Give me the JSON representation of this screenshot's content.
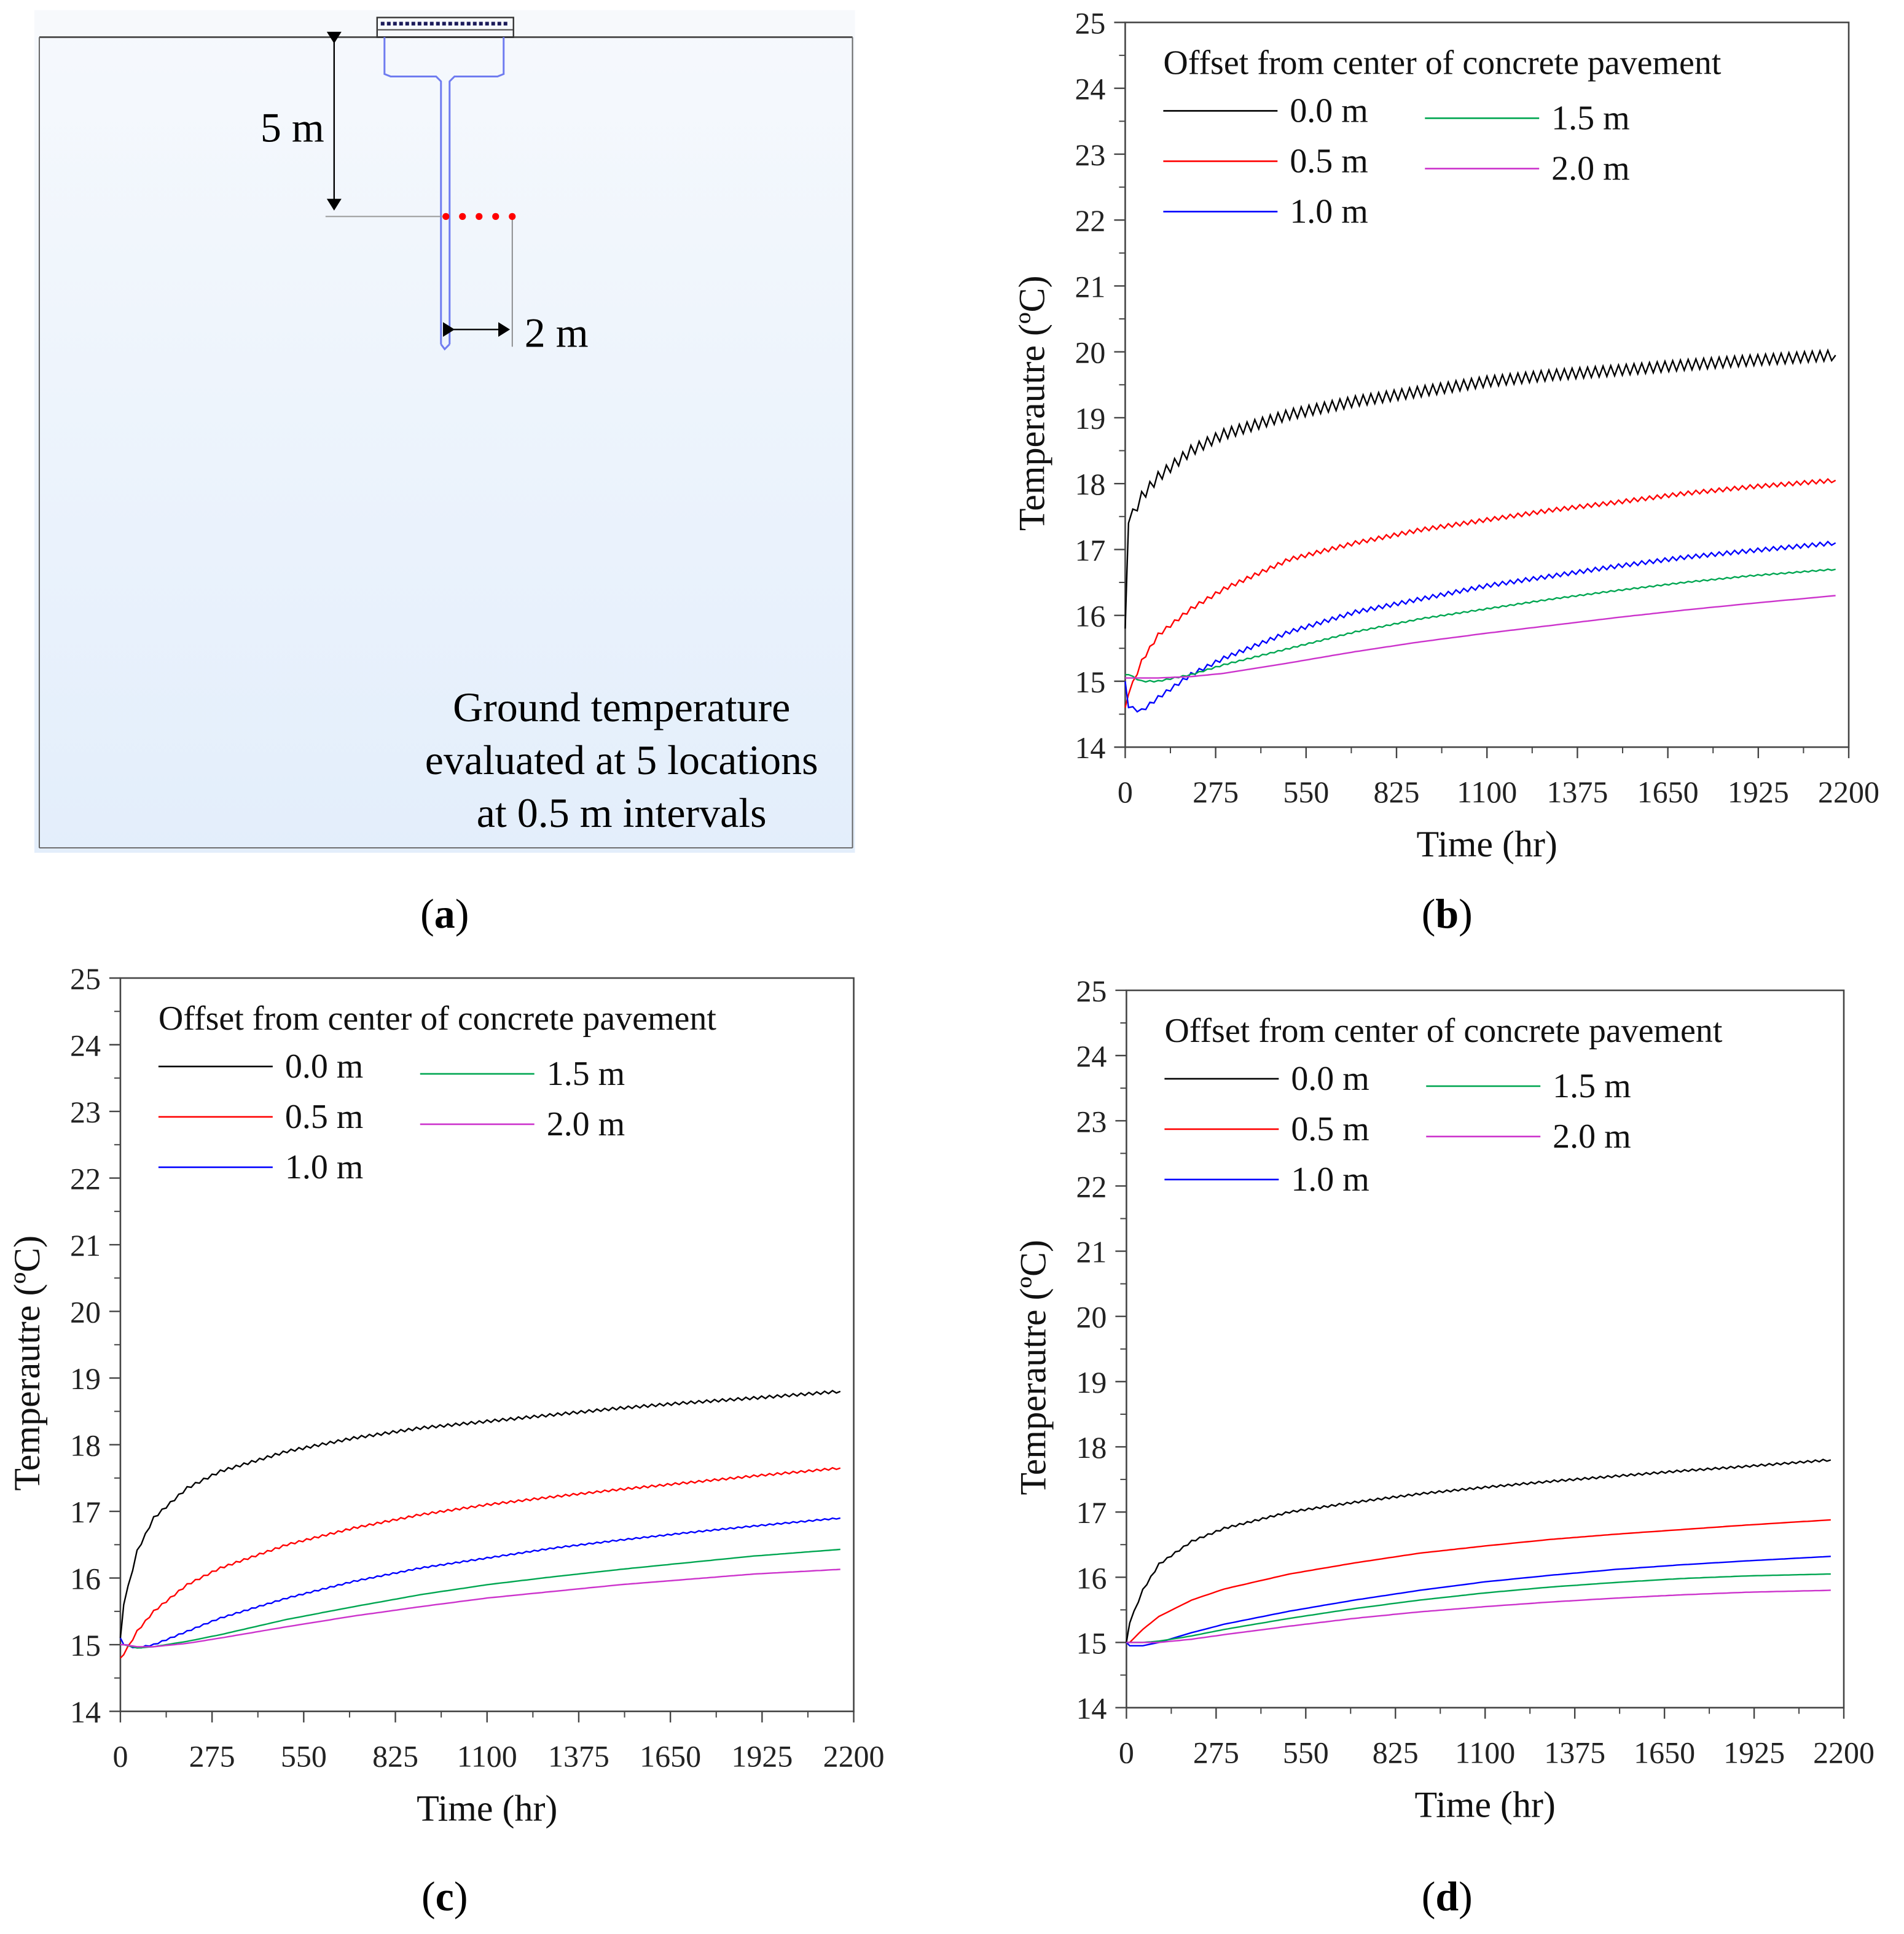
{
  "panel_a": {
    "label_open": "(",
    "label_letter": "a",
    "label_close": ")",
    "depth_label": "5 m",
    "offset_label": "2 m",
    "caption_lines": [
      "Ground temperature",
      "evaluated at 5 locations",
      "at 0.5 m intervals"
    ],
    "point_color": "#ff0000",
    "pipe_color": "#6f7cf0"
  },
  "chart_data": [
    {
      "panel": "b",
      "type": "line",
      "xlabel": "Time (hr)",
      "ylabel": "Temperautre (ºC)",
      "xlim": [
        0,
        2200
      ],
      "ylim": [
        14,
        25
      ],
      "xticks": [
        "0",
        "275",
        "550",
        "825",
        "1100",
        "1375",
        "1650",
        "1925",
        "2200"
      ],
      "yticks": [
        "14",
        "15",
        "16",
        "17",
        "18",
        "19",
        "20",
        "21",
        "22",
        "23",
        "24",
        "25"
      ],
      "legend_title": "Offset from center of concrete pavement",
      "legend_placement": "top-left",
      "x": [
        0,
        10,
        50,
        100,
        200,
        300,
        500,
        700,
        900,
        1100,
        1300,
        1500,
        1700,
        1900,
        2160
      ],
      "series": [
        {
          "name": "0.0 m",
          "color": "#000000",
          "oscillation": 0.08,
          "values": [
            15.8,
            17.4,
            17.8,
            18.1,
            18.5,
            18.75,
            19.05,
            19.25,
            19.4,
            19.55,
            19.65,
            19.72,
            19.8,
            19.87,
            19.95
          ]
        },
        {
          "name": "0.5 m",
          "color": "#ff0000",
          "oscillation": 0.03,
          "values": [
            14.6,
            14.8,
            15.3,
            15.7,
            16.1,
            16.4,
            16.85,
            17.1,
            17.3,
            17.45,
            17.6,
            17.72,
            17.85,
            17.95,
            18.05
          ]
        },
        {
          "name": "1.0 m",
          "color": "#0000ff",
          "oscillation": 0.03,
          "values": [
            15.0,
            14.6,
            14.55,
            14.75,
            15.1,
            15.35,
            15.75,
            16.05,
            16.25,
            16.45,
            16.6,
            16.75,
            16.88,
            16.98,
            17.1
          ]
        },
        {
          "name": "1.5 m",
          "color": "#00a651",
          "oscillation": 0.01,
          "values": [
            15.1,
            15.1,
            15.0,
            15.0,
            15.1,
            15.25,
            15.5,
            15.75,
            15.95,
            16.1,
            16.25,
            16.38,
            16.5,
            16.6,
            16.7
          ]
        },
        {
          "name": "2.0 m",
          "color": "#cc33cc",
          "oscillation": 0.0,
          "values": [
            15.05,
            15.05,
            15.05,
            15.05,
            15.07,
            15.12,
            15.28,
            15.45,
            15.6,
            15.73,
            15.85,
            15.97,
            16.08,
            16.18,
            16.3
          ]
        }
      ]
    },
    {
      "panel": "c",
      "type": "line",
      "xlabel": "Time (hr)",
      "ylabel": "Temperautre (ºC)",
      "xlim": [
        0,
        2200
      ],
      "ylim": [
        14,
        25
      ],
      "xticks": [
        "0",
        "275",
        "550",
        "825",
        "1100",
        "1375",
        "1650",
        "1925",
        "2200"
      ],
      "yticks": [
        "14",
        "15",
        "16",
        "17",
        "18",
        "19",
        "20",
        "21",
        "22",
        "23",
        "24",
        "25"
      ],
      "legend_title": "Offset from center of concrete pavement",
      "legend_placement": "top-left",
      "x": [
        0,
        10,
        50,
        100,
        200,
        300,
        500,
        700,
        900,
        1100,
        1300,
        1500,
        1700,
        1900,
        2160
      ],
      "series": [
        {
          "name": "0.0 m",
          "color": "#000000",
          "oscillation": 0.02,
          "values": [
            15.1,
            15.6,
            16.4,
            16.9,
            17.35,
            17.6,
            17.9,
            18.1,
            18.25,
            18.35,
            18.45,
            18.55,
            18.63,
            18.7,
            18.8
          ]
        },
        {
          "name": "0.5 m",
          "color": "#ff0000",
          "oscillation": 0.015,
          "values": [
            14.8,
            14.85,
            15.2,
            15.5,
            15.9,
            16.15,
            16.5,
            16.75,
            16.95,
            17.1,
            17.22,
            17.33,
            17.43,
            17.53,
            17.65
          ]
        },
        {
          "name": "1.0 m",
          "color": "#0000ff",
          "oscillation": 0.01,
          "values": [
            15.1,
            15.0,
            14.95,
            15.0,
            15.2,
            15.4,
            15.7,
            15.95,
            16.15,
            16.3,
            16.45,
            16.57,
            16.68,
            16.78,
            16.9
          ]
        },
        {
          "name": "1.5 m",
          "color": "#00a651",
          "oscillation": 0.0,
          "values": [
            15.0,
            15.0,
            14.95,
            14.97,
            15.05,
            15.15,
            15.38,
            15.57,
            15.75,
            15.9,
            16.02,
            16.13,
            16.23,
            16.33,
            16.43
          ]
        },
        {
          "name": "2.0 m",
          "color": "#cc33cc",
          "oscillation": 0.0,
          "values": [
            15.0,
            15.0,
            14.97,
            14.97,
            15.02,
            15.1,
            15.27,
            15.43,
            15.57,
            15.7,
            15.8,
            15.9,
            15.98,
            16.06,
            16.13
          ]
        }
      ]
    },
    {
      "panel": "d",
      "type": "line",
      "xlabel": "Time (hr)",
      "ylabel": "Temperautre (ºC)",
      "xlim": [
        0,
        2200
      ],
      "ylim": [
        14,
        25
      ],
      "xticks": [
        "0",
        "275",
        "550",
        "825",
        "1100",
        "1375",
        "1650",
        "1925",
        "2200"
      ],
      "yticks": [
        "14",
        "15",
        "16",
        "17",
        "18",
        "19",
        "20",
        "21",
        "22",
        "23",
        "24",
        "25"
      ],
      "legend_title": "Offset from center of concrete pavement",
      "legend_placement": "top-left",
      "x": [
        0,
        10,
        50,
        100,
        200,
        300,
        500,
        700,
        900,
        1100,
        1300,
        1500,
        1700,
        1900,
        2160
      ],
      "series": [
        {
          "name": "0.0 m",
          "color": "#000000",
          "oscillation": 0.015,
          "values": [
            15.0,
            15.3,
            15.8,
            16.2,
            16.55,
            16.75,
            17.0,
            17.15,
            17.28,
            17.38,
            17.47,
            17.55,
            17.63,
            17.7,
            17.8
          ]
        },
        {
          "name": "0.5 m",
          "color": "#ff0000",
          "oscillation": 0.0,
          "values": [
            15.0,
            15.0,
            15.2,
            15.4,
            15.65,
            15.82,
            16.05,
            16.22,
            16.37,
            16.48,
            16.58,
            16.66,
            16.73,
            16.8,
            16.88
          ]
        },
        {
          "name": "1.0 m",
          "color": "#0000ff",
          "oscillation": 0.0,
          "values": [
            15.0,
            14.95,
            14.95,
            15.0,
            15.15,
            15.28,
            15.48,
            15.65,
            15.8,
            15.93,
            16.03,
            16.12,
            16.19,
            16.25,
            16.32
          ]
        },
        {
          "name": "1.5 m",
          "color": "#00a651",
          "oscillation": 0.0,
          "values": [
            15.0,
            15.0,
            15.0,
            15.02,
            15.1,
            15.2,
            15.37,
            15.52,
            15.65,
            15.76,
            15.85,
            15.92,
            15.98,
            16.02,
            16.05
          ]
        },
        {
          "name": "2.0 m",
          "color": "#cc33cc",
          "oscillation": 0.0,
          "values": [
            15.0,
            15.0,
            15.0,
            15.0,
            15.05,
            15.12,
            15.25,
            15.37,
            15.47,
            15.55,
            15.62,
            15.68,
            15.73,
            15.77,
            15.8
          ]
        }
      ]
    }
  ]
}
